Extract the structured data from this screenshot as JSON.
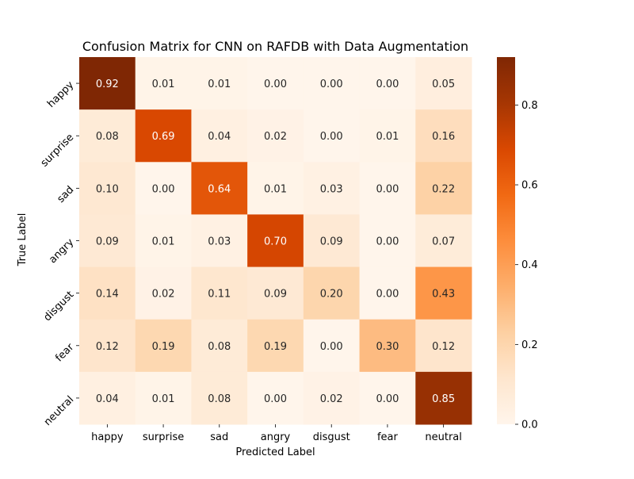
{
  "chart_data": {
    "type": "heatmap",
    "title": "Confusion Matrix for CNN on RAFDB with Data Augmentation",
    "xlabel": "Predicted Label",
    "ylabel": "True Label",
    "x_categories": [
      "happy",
      "surprise",
      "sad",
      "angry",
      "disgust",
      "fear",
      "neutral"
    ],
    "y_categories": [
      "happy",
      "surprise",
      "sad",
      "angry",
      "disgust",
      "fear",
      "neutral"
    ],
    "values": [
      [
        0.92,
        0.01,
        0.01,
        0.0,
        0.0,
        0.0,
        0.05
      ],
      [
        0.08,
        0.69,
        0.04,
        0.02,
        0.0,
        0.01,
        0.16
      ],
      [
        0.1,
        0.0,
        0.64,
        0.01,
        0.03,
        0.0,
        0.22
      ],
      [
        0.09,
        0.01,
        0.03,
        0.7,
        0.09,
        0.0,
        0.07
      ],
      [
        0.14,
        0.02,
        0.11,
        0.09,
        0.2,
        0.0,
        0.43
      ],
      [
        0.12,
        0.19,
        0.08,
        0.19,
        0.0,
        0.3,
        0.12
      ],
      [
        0.04,
        0.01,
        0.08,
        0.0,
        0.02,
        0.0,
        0.85
      ]
    ],
    "colorbar": {
      "colormap": "Oranges",
      "vmin": 0.0,
      "vmax": 0.92,
      "ticks": [
        0.0,
        0.2,
        0.4,
        0.6,
        0.8
      ],
      "tick_labels": [
        "0.0",
        "0.2",
        "0.4",
        "0.6",
        "0.8"
      ]
    }
  }
}
